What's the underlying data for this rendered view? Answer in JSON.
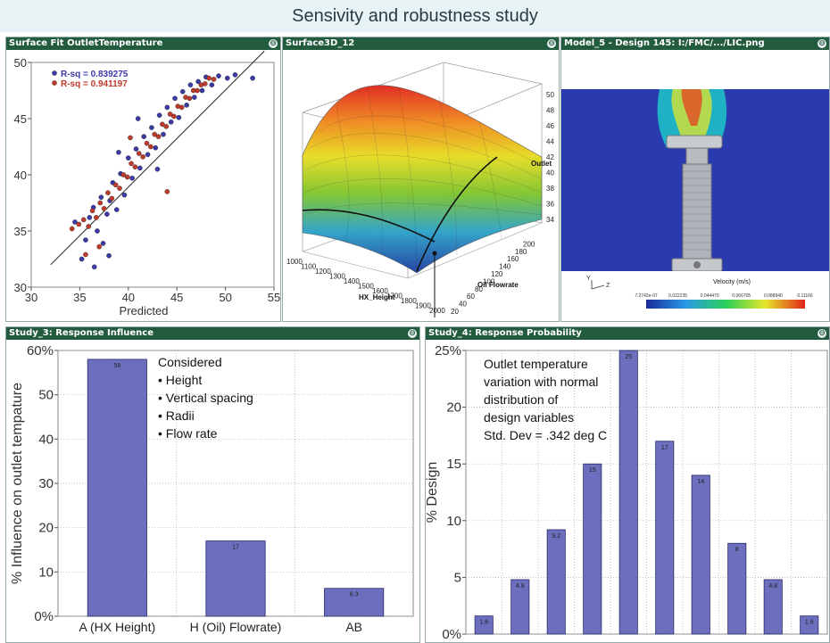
{
  "page_title": "Sensivity and robustness study",
  "panels": {
    "fit": {
      "title": "Surface Fit OutletTemperature"
    },
    "surface": {
      "title": "Surface3D_12"
    },
    "model": {
      "title": "Model_5 - Design 145: I:/FMC/.../LIC.png"
    },
    "influence": {
      "title": "Study_3: Response Influence"
    },
    "probability": {
      "title": "Study_4: Response Probability"
    }
  },
  "colors": {
    "header": "#235b3f",
    "bar": "#6b6fbd",
    "series1": "#3a3aa8",
    "series2": "#c03a2a"
  },
  "chart_data": [
    {
      "type": "scatter",
      "xlabel": "Predicted",
      "ylabel": "",
      "xlim": [
        30,
        55
      ],
      "ylim": [
        30,
        50
      ],
      "xticks": [
        30,
        35,
        40,
        45,
        50,
        55
      ],
      "yticks": [
        30,
        35,
        40,
        45,
        50
      ],
      "legend": [
        {
          "label": "R-sq = 0.839275",
          "color": "#3a3aa8"
        },
        {
          "label": "R-sq = 0.941197",
          "color": "#c03a2a"
        }
      ],
      "fit_line": [
        [
          32,
          32
        ],
        [
          54,
          51
        ]
      ],
      "series": [
        {
          "name": "R-sq = 0.839275",
          "points": [
            [
              34.5,
              35.8
            ],
            [
              35.2,
              32.5
            ],
            [
              35.6,
              34.2
            ],
            [
              36.0,
              36.2
            ],
            [
              36.4,
              37.1
            ],
            [
              36.8,
              35.0
            ],
            [
              37.2,
              38.0
            ],
            [
              37.4,
              33.9
            ],
            [
              37.8,
              36.5
            ],
            [
              38.1,
              37.7
            ],
            [
              38.4,
              39.3
            ],
            [
              38.8,
              36.9
            ],
            [
              39.2,
              40.1
            ],
            [
              39.6,
              38.2
            ],
            [
              40.0,
              41.5
            ],
            [
              40.4,
              39.7
            ],
            [
              40.8,
              42.3
            ],
            [
              41.2,
              40.6
            ],
            [
              41.6,
              43.4
            ],
            [
              42.0,
              41.8
            ],
            [
              42.4,
              44.2
            ],
            [
              42.8,
              42.4
            ],
            [
              43.2,
              45.3
            ],
            [
              43.6,
              43.6
            ],
            [
              44.0,
              46.0
            ],
            [
              44.4,
              44.7
            ],
            [
              44.8,
              46.8
            ],
            [
              45.2,
              45.1
            ],
            [
              45.6,
              47.4
            ],
            [
              46.0,
              46.2
            ],
            [
              46.4,
              48.0
            ],
            [
              46.8,
              46.9
            ],
            [
              47.2,
              48.3
            ],
            [
              47.6,
              47.5
            ],
            [
              48.0,
              48.7
            ],
            [
              48.6,
              48.0
            ],
            [
              49.3,
              48.8
            ],
            [
              50.2,
              48.6
            ],
            [
              51.0,
              48.9
            ],
            [
              52.8,
              48.6
            ],
            [
              41.0,
              45.0
            ],
            [
              43.0,
              40.5
            ],
            [
              38.0,
              32.8
            ],
            [
              36.5,
              31.8
            ],
            [
              39.0,
              42.0
            ]
          ]
        },
        {
          "name": "R-sq = 0.941197",
          "points": [
            [
              34.2,
              35.2
            ],
            [
              34.9,
              35.6
            ],
            [
              35.4,
              36.0
            ],
            [
              35.9,
              35.4
            ],
            [
              36.3,
              36.8
            ],
            [
              36.7,
              36.2
            ],
            [
              37.1,
              37.5
            ],
            [
              37.5,
              37.0
            ],
            [
              37.9,
              38.4
            ],
            [
              38.3,
              37.9
            ],
            [
              38.7,
              39.1
            ],
            [
              39.1,
              38.8
            ],
            [
              39.5,
              40.0
            ],
            [
              39.9,
              39.8
            ],
            [
              40.3,
              41.0
            ],
            [
              40.7,
              40.7
            ],
            [
              41.1,
              41.9
            ],
            [
              41.5,
              41.6
            ],
            [
              41.9,
              42.8
            ],
            [
              42.3,
              42.5
            ],
            [
              42.7,
              43.6
            ],
            [
              43.1,
              43.4
            ],
            [
              43.5,
              44.5
            ],
            [
              43.9,
              44.3
            ],
            [
              44.3,
              45.4
            ],
            [
              44.7,
              45.2
            ],
            [
              45.1,
              46.1
            ],
            [
              45.5,
              46.0
            ],
            [
              45.9,
              46.9
            ],
            [
              46.3,
              46.8
            ],
            [
              46.7,
              47.5
            ],
            [
              47.1,
              47.5
            ],
            [
              47.5,
              48.0
            ],
            [
              47.9,
              48.1
            ],
            [
              48.3,
              48.6
            ],
            [
              48.8,
              48.5
            ],
            [
              37.0,
              33.6
            ],
            [
              35.6,
              32.9
            ],
            [
              44.0,
              38.5
            ],
            [
              40.2,
              43.3
            ]
          ]
        }
      ]
    },
    {
      "type": "surface3d",
      "x_axis_label": "HX_Height",
      "y_axis_label": "Oil Flowrate",
      "z_axis_label": "Outlet",
      "x_ticks": [
        1000,
        1100,
        1200,
        1300,
        1400,
        1500,
        1600,
        1700,
        1800,
        1900,
        2000
      ],
      "y_ticks": [
        20,
        40,
        60,
        80,
        100,
        120,
        140,
        160,
        180,
        200
      ],
      "z_ticks": [
        34,
        36,
        38,
        40,
        42,
        44,
        46,
        48,
        50
      ]
    },
    {
      "type": "bar",
      "categories": [
        "A (HX Height)",
        "H (Oil) Flowrate)",
        "AB"
      ],
      "values": [
        58,
        17,
        6.3
      ],
      "value_labels": [
        "58",
        "17",
        "6.3"
      ],
      "ylabel": "% Influence on outlet tempature",
      "ylim": [
        0,
        60
      ],
      "yticks": [
        0,
        10,
        20,
        30,
        40,
        50,
        60
      ],
      "ytick_labels": [
        "0%",
        "10",
        "20",
        "30",
        "40",
        "50",
        "60%"
      ],
      "annotation": [
        "Considered",
        "• Height",
        "• Vertical spacing",
        "• Radii",
        "• Flow rate"
      ]
    },
    {
      "type": "bar",
      "categories": [
        "",
        "",
        "",
        "",
        "",
        "",
        "",
        "",
        "",
        ""
      ],
      "values": [
        1.6,
        4.8,
        9.2,
        15,
        25,
        17,
        14,
        8,
        4.8,
        1.6
      ],
      "value_labels": [
        "1.6",
        "4.8",
        "9.2",
        "15",
        "25",
        "17",
        "14",
        "8",
        "4.8",
        "1.6"
      ],
      "ylabel": "% Design",
      "ylim": [
        0,
        25
      ],
      "yticks": [
        0,
        5,
        10,
        15,
        20,
        25
      ],
      "ytick_labels": [
        "0%",
        "5",
        "10",
        "15",
        "20",
        "25%"
      ],
      "annotation": [
        "Outlet temperature",
        "variation with normal",
        "distribution of",
        "design variables",
        "Std. Dev = .342 deg C"
      ]
    }
  ],
  "model_view": {
    "legend_title": "Velocity (m/s)",
    "scale_labels": [
      "7.2742e-07",
      "0.022235",
      "0.044470",
      "0.066705",
      "0.088940",
      "0.11166"
    ],
    "axis_labels": [
      "Y",
      "Z"
    ]
  }
}
